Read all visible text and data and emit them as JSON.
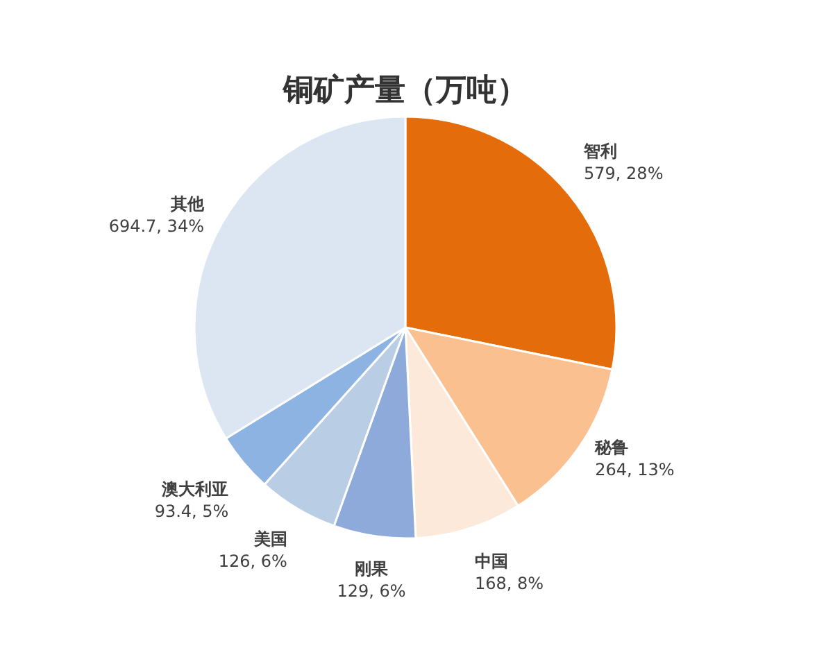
{
  "chart_data": {
    "type": "pie",
    "title": "铜矿产量（万吨）",
    "categories": [
      "智利",
      "秘鲁",
      "中国",
      "刚果",
      "美国",
      "澳大利亚",
      "其他"
    ],
    "values": [
      579,
      264,
      168,
      129,
      126,
      93.4,
      694.7
    ],
    "colors": [
      "#e46c0a",
      "#fac090",
      "#fde9d9",
      "#8eaadb",
      "#b9cde5",
      "#8db3e2",
      "#dce6f2"
    ],
    "value_labels": [
      "579, 28%",
      "264, 13%",
      "168, 8%",
      "129, 6%",
      "126, 6%",
      "93.4, 5%",
      "694.7, 34%"
    ]
  }
}
